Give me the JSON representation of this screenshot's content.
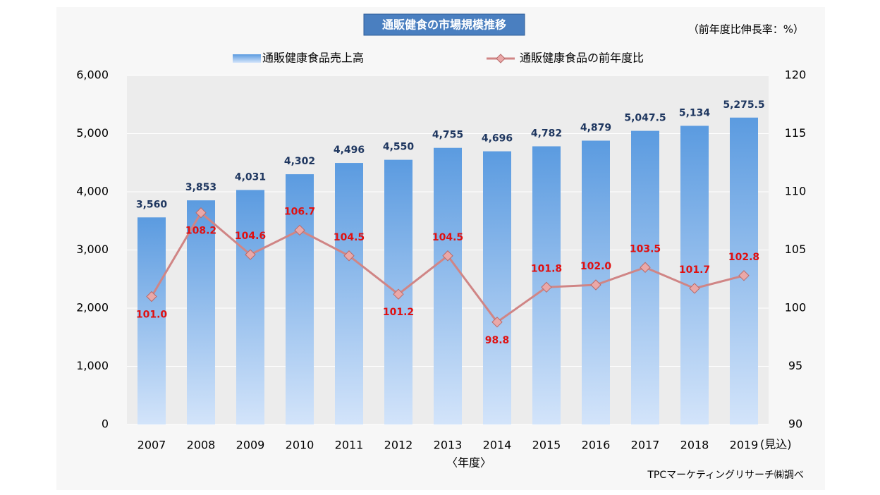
{
  "chart_data": {
    "type": "bar-line",
    "title": "通販健食の市場規模推移",
    "y2_label": "（前年度比伸長率：%）",
    "x_label": "〈年度〉",
    "x_note": "(見込)",
    "source": "TPCマーケティングリサーチ㈱調べ",
    "categories": [
      "2007",
      "2008",
      "2009",
      "2010",
      "2011",
      "2012",
      "2013",
      "2014",
      "2015",
      "2016",
      "2017",
      "2018",
      "2019"
    ],
    "series": [
      {
        "name": "通販健康食品売上高",
        "type": "bar",
        "color": "#5b9be0",
        "values": [
          3560,
          3853,
          4031,
          4302,
          4496,
          4550,
          4755,
          4696,
          4782,
          4879,
          5047.5,
          5134,
          5275.5
        ],
        "value_labels": [
          "3,560",
          "3,853",
          "4,031",
          "4,302",
          "4,496",
          "4,550",
          "4,755",
          "4,696",
          "4,782",
          "4,879",
          "5,047.5",
          "5,134",
          "5,275.5"
        ]
      },
      {
        "name": "通販健康食品の前年度比",
        "type": "line",
        "axis": "y2",
        "color": "#d08585",
        "values": [
          101.0,
          108.2,
          104.6,
          106.7,
          104.5,
          101.2,
          104.5,
          98.8,
          101.8,
          102.0,
          103.5,
          101.7,
          102.8
        ],
        "value_labels": [
          "101.0",
          "108.2",
          "104.6",
          "106.7",
          "104.5",
          "101.2",
          "104.5",
          "98.8",
          "101.8",
          "102.0",
          "103.5",
          "101.7",
          "102.8"
        ]
      }
    ],
    "ylim": [
      0,
      6000
    ],
    "yticks": [
      0,
      {
        "value": 1000,
        "label": "1,000"
      },
      {
        "value": 2000,
        "label": "2,000"
      },
      {
        "value": 3000,
        "label": "3,000"
      },
      {
        "value": 4000,
        "label": "4,000"
      },
      {
        "value": 5000,
        "label": "5,000"
      },
      {
        "value": 6000,
        "label": "6,000"
      }
    ],
    "y2lim": [
      90,
      120
    ],
    "y2ticks": [
      90,
      95,
      100,
      105,
      110,
      115,
      120
    ],
    "grid": true
  }
}
